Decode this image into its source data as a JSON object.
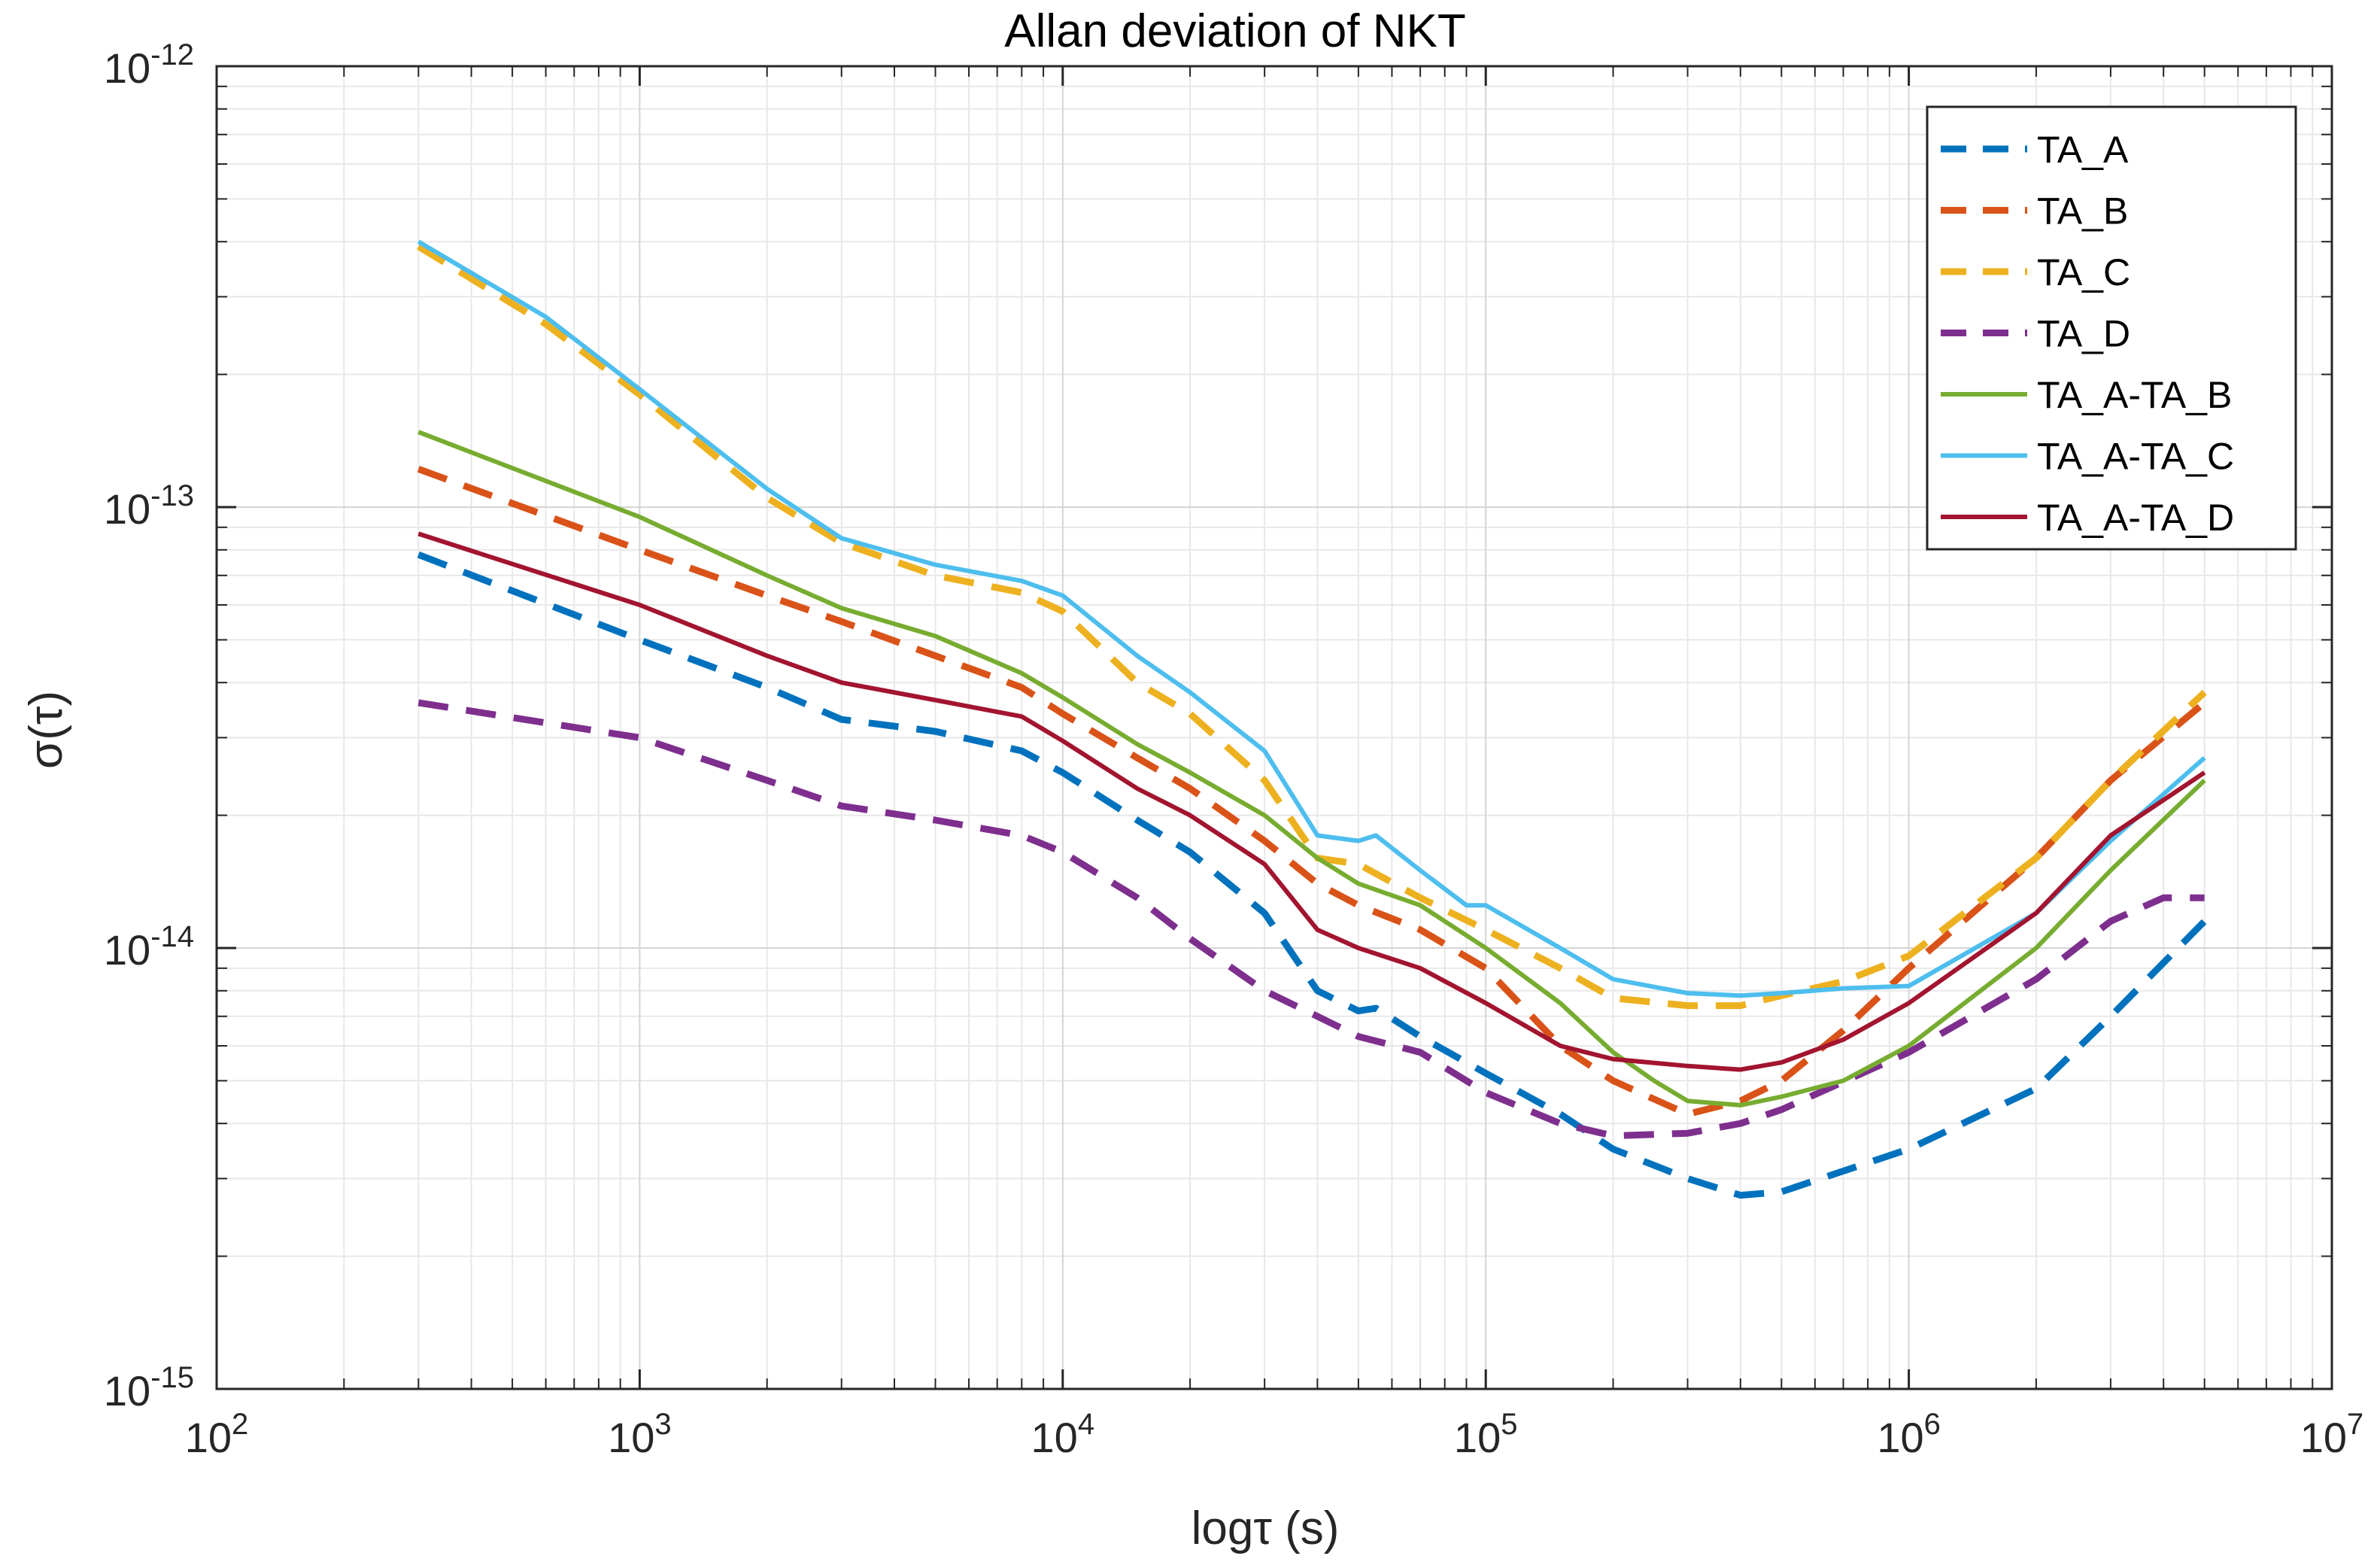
{
  "chart_data": {
    "type": "line",
    "title": "Allan deviation of NKT",
    "xlabel": "logτ (s)",
    "ylabel": "σ(τ)",
    "xscale": "log",
    "yscale": "log",
    "xlim": [
      100,
      10000000
    ],
    "ylim": [
      1e-15,
      1e-12
    ],
    "grid": true,
    "legend_position": "top-right",
    "x_ticks": [
      {
        "value": 100,
        "base": "10",
        "exp": "2"
      },
      {
        "value": 1000,
        "base": "10",
        "exp": "3"
      },
      {
        "value": 10000,
        "base": "10",
        "exp": "4"
      },
      {
        "value": 100000,
        "base": "10",
        "exp": "5"
      },
      {
        "value": 1000000,
        "base": "10",
        "exp": "6"
      },
      {
        "value": 10000000,
        "base": "10",
        "exp": "7"
      }
    ],
    "y_ticks": [
      {
        "value": 1e-15,
        "base": "10",
        "exp": "-15"
      },
      {
        "value": 1e-14,
        "base": "10",
        "exp": "-14"
      },
      {
        "value": 1e-13,
        "base": "10",
        "exp": "-13"
      },
      {
        "value": 1e-12,
        "base": "10",
        "exp": "-12"
      }
    ],
    "series": [
      {
        "name": "TA_A",
        "color": "#0072BD",
        "style": "dashed",
        "points": [
          [
            300,
            7.8e-14
          ],
          [
            1000,
            5e-14
          ],
          [
            2000,
            3.9e-14
          ],
          [
            3000,
            3.3e-14
          ],
          [
            5000,
            3.1e-14
          ],
          [
            8000,
            2.8e-14
          ],
          [
            10000,
            2.5e-14
          ],
          [
            15000,
            1.95e-14
          ],
          [
            20000,
            1.65e-14
          ],
          [
            30000,
            1.2e-14
          ],
          [
            40000,
            8e-15
          ],
          [
            50000,
            7.2e-15
          ],
          [
            55000,
            7.3e-15
          ],
          [
            70000,
            6.3e-15
          ],
          [
            100000,
            5.2e-15
          ],
          [
            150000,
            4.2e-15
          ],
          [
            200000,
            3.5e-15
          ],
          [
            300000,
            3e-15
          ],
          [
            400000,
            2.75e-15
          ],
          [
            500000,
            2.8e-15
          ],
          [
            1000000,
            3.5e-15
          ],
          [
            2000000,
            4.8e-15
          ],
          [
            3000000,
            7e-15
          ],
          [
            5000000,
            1.15e-14
          ]
        ]
      },
      {
        "name": "TA_B",
        "color": "#D95319",
        "style": "dashed",
        "points": [
          [
            300,
            1.22e-13
          ],
          [
            1000,
            8e-14
          ],
          [
            2000,
            6.3e-14
          ],
          [
            3000,
            5.5e-14
          ],
          [
            5000,
            4.6e-14
          ],
          [
            8000,
            3.9e-14
          ],
          [
            10000,
            3.4e-14
          ],
          [
            15000,
            2.7e-14
          ],
          [
            20000,
            2.3e-14
          ],
          [
            30000,
            1.75e-14
          ],
          [
            40000,
            1.4e-14
          ],
          [
            50000,
            1.25e-14
          ],
          [
            70000,
            1.1e-14
          ],
          [
            100000,
            9e-15
          ],
          [
            150000,
            6e-15
          ],
          [
            200000,
            5e-15
          ],
          [
            300000,
            4.2e-15
          ],
          [
            400000,
            4.5e-15
          ],
          [
            500000,
            5e-15
          ],
          [
            700000,
            6.5e-15
          ],
          [
            1000000,
            9e-15
          ],
          [
            2000000,
            1.6e-14
          ],
          [
            3000000,
            2.4e-14
          ],
          [
            5000000,
            3.6e-14
          ]
        ]
      },
      {
        "name": "TA_C",
        "color": "#EDB120",
        "style": "dashed",
        "points": [
          [
            300,
            3.9e-13
          ],
          [
            600,
            2.6e-13
          ],
          [
            1000,
            1.8e-13
          ],
          [
            2000,
            1.05e-13
          ],
          [
            3000,
            8.3e-14
          ],
          [
            5000,
            7e-14
          ],
          [
            8000,
            6.4e-14
          ],
          [
            10000,
            5.8e-14
          ],
          [
            15000,
            4e-14
          ],
          [
            20000,
            3.4e-14
          ],
          [
            30000,
            2.4e-14
          ],
          [
            40000,
            1.6e-14
          ],
          [
            50000,
            1.55e-14
          ],
          [
            70000,
            1.3e-14
          ],
          [
            100000,
            1.1e-14
          ],
          [
            150000,
            9e-15
          ],
          [
            200000,
            7.7e-15
          ],
          [
            300000,
            7.4e-15
          ],
          [
            400000,
            7.4e-15
          ],
          [
            500000,
            7.8e-15
          ],
          [
            700000,
            8.4e-15
          ],
          [
            1000000,
            9.6e-15
          ],
          [
            2000000,
            1.6e-14
          ],
          [
            3000000,
            2.4e-14
          ],
          [
            5000000,
            3.8e-14
          ]
        ]
      },
      {
        "name": "TA_D",
        "color": "#7E2F8E",
        "style": "dashed",
        "points": [
          [
            300,
            3.6e-14
          ],
          [
            1000,
            3e-14
          ],
          [
            2000,
            2.4e-14
          ],
          [
            3000,
            2.1e-14
          ],
          [
            5000,
            1.95e-14
          ],
          [
            8000,
            1.8e-14
          ],
          [
            10000,
            1.65e-14
          ],
          [
            15000,
            1.3e-14
          ],
          [
            20000,
            1.05e-14
          ],
          [
            30000,
            8e-15
          ],
          [
            40000,
            7e-15
          ],
          [
            50000,
            6.3e-15
          ],
          [
            70000,
            5.8e-15
          ],
          [
            100000,
            4.7e-15
          ],
          [
            150000,
            4e-15
          ],
          [
            200000,
            3.75e-15
          ],
          [
            300000,
            3.8e-15
          ],
          [
            400000,
            4e-15
          ],
          [
            500000,
            4.3e-15
          ],
          [
            1000000,
            5.8e-15
          ],
          [
            2000000,
            8.5e-15
          ],
          [
            3000000,
            1.15e-14
          ],
          [
            4000000,
            1.3e-14
          ],
          [
            5000000,
            1.3e-14
          ]
        ]
      },
      {
        "name": "TA_A-TA_B",
        "color": "#77AC30",
        "style": "solid",
        "points": [
          [
            300,
            1.48e-13
          ],
          [
            1000,
            9.5e-14
          ],
          [
            2000,
            7e-14
          ],
          [
            3000,
            5.9e-14
          ],
          [
            5000,
            5.1e-14
          ],
          [
            8000,
            4.2e-14
          ],
          [
            10000,
            3.7e-14
          ],
          [
            15000,
            2.9e-14
          ],
          [
            20000,
            2.5e-14
          ],
          [
            30000,
            2e-14
          ],
          [
            40000,
            1.6e-14
          ],
          [
            50000,
            1.4e-14
          ],
          [
            70000,
            1.25e-14
          ],
          [
            100000,
            1e-14
          ],
          [
            150000,
            7.5e-15
          ],
          [
            200000,
            5.8e-15
          ],
          [
            250000,
            5e-15
          ],
          [
            300000,
            4.5e-15
          ],
          [
            400000,
            4.4e-15
          ],
          [
            500000,
            4.6e-15
          ],
          [
            700000,
            5e-15
          ],
          [
            1000000,
            6e-15
          ],
          [
            2000000,
            1e-14
          ],
          [
            3000000,
            1.5e-14
          ],
          [
            5000000,
            2.4e-14
          ]
        ]
      },
      {
        "name": "TA_A-TA_C",
        "color": "#4DBEEE",
        "style": "solid",
        "points": [
          [
            300,
            4e-13
          ],
          [
            600,
            2.7e-13
          ],
          [
            1000,
            1.85e-13
          ],
          [
            2000,
            1.1e-13
          ],
          [
            3000,
            8.5e-14
          ],
          [
            5000,
            7.4e-14
          ],
          [
            8000,
            6.8e-14
          ],
          [
            10000,
            6.3e-14
          ],
          [
            15000,
            4.6e-14
          ],
          [
            20000,
            3.8e-14
          ],
          [
            30000,
            2.8e-14
          ],
          [
            40000,
            1.8e-14
          ],
          [
            50000,
            1.75e-14
          ],
          [
            55000,
            1.8e-14
          ],
          [
            70000,
            1.5e-14
          ],
          [
            90000,
            1.25e-14
          ],
          [
            100000,
            1.25e-14
          ],
          [
            150000,
            1e-14
          ],
          [
            200000,
            8.5e-15
          ],
          [
            300000,
            7.9e-15
          ],
          [
            400000,
            7.8e-15
          ],
          [
            500000,
            7.9e-15
          ],
          [
            700000,
            8.1e-15
          ],
          [
            1000000,
            8.2e-15
          ],
          [
            2000000,
            1.2e-14
          ],
          [
            3000000,
            1.75e-14
          ],
          [
            5000000,
            2.7e-14
          ]
        ]
      },
      {
        "name": "TA_A-TA_D",
        "color": "#A2142F",
        "style": "solid",
        "points": [
          [
            300,
            8.7e-14
          ],
          [
            1000,
            6e-14
          ],
          [
            2000,
            4.6e-14
          ],
          [
            3000,
            4e-14
          ],
          [
            5000,
            3.65e-14
          ],
          [
            8000,
            3.35e-14
          ],
          [
            10000,
            2.95e-14
          ],
          [
            15000,
            2.3e-14
          ],
          [
            20000,
            2e-14
          ],
          [
            30000,
            1.55e-14
          ],
          [
            40000,
            1.1e-14
          ],
          [
            50000,
            1e-14
          ],
          [
            70000,
            9e-15
          ],
          [
            100000,
            7.5e-15
          ],
          [
            150000,
            6e-15
          ],
          [
            200000,
            5.6e-15
          ],
          [
            300000,
            5.4e-15
          ],
          [
            400000,
            5.3e-15
          ],
          [
            500000,
            5.5e-15
          ],
          [
            700000,
            6.2e-15
          ],
          [
            1000000,
            7.5e-15
          ],
          [
            2000000,
            1.2e-14
          ],
          [
            3000000,
            1.8e-14
          ],
          [
            5000000,
            2.5e-14
          ]
        ]
      }
    ]
  }
}
